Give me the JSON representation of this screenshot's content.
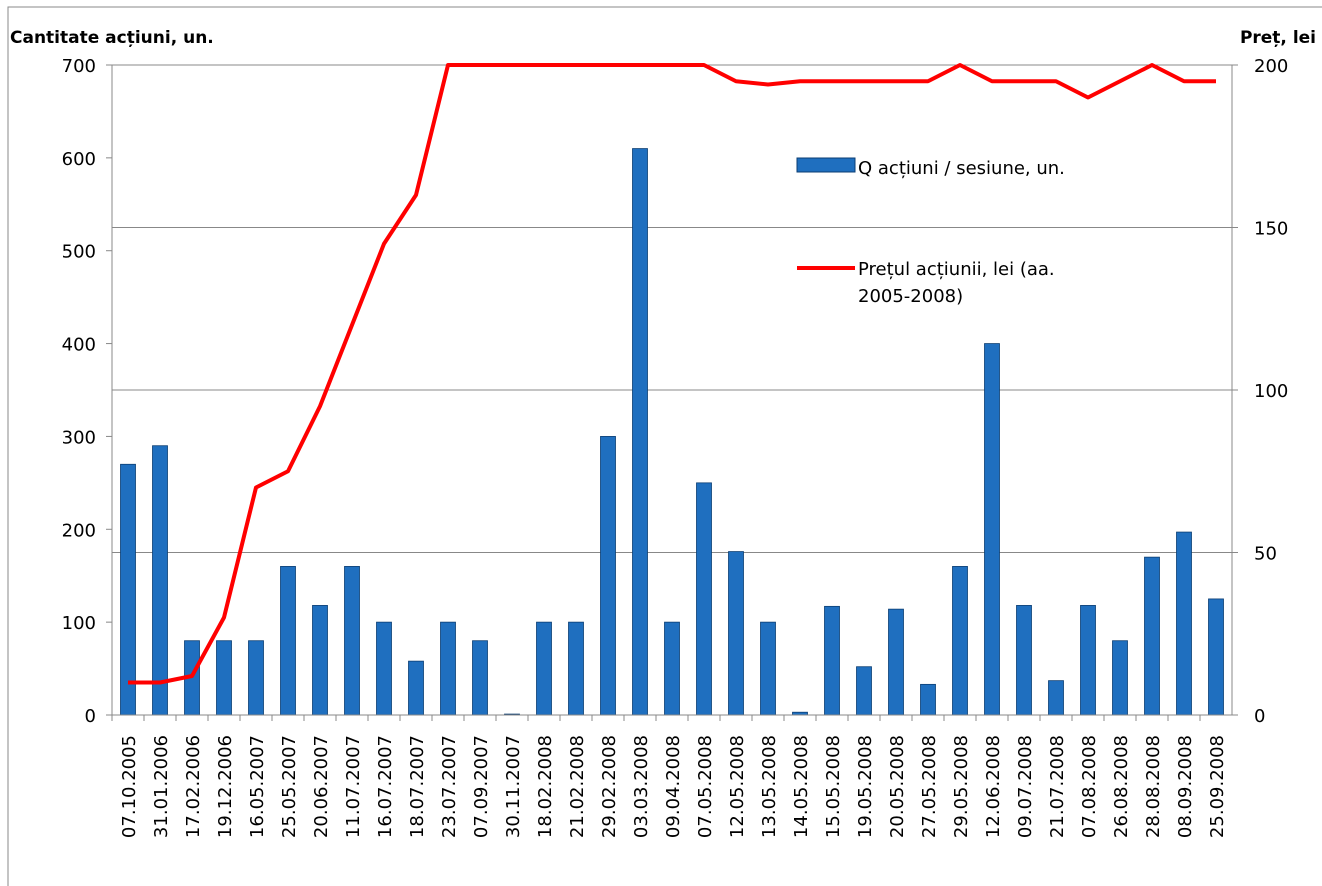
{
  "chart_data": {
    "type": "bar_line",
    "ylabel": "Cantitate acțiuni, un.",
    "y2label": "Preț, lei",
    "categories": [
      "07.10.2005",
      "31.01.2006",
      "17.02.2006",
      "19.12.2006",
      "16.05.2007",
      "25.05.2007",
      "20.06.2007",
      "11.07.2007",
      "16.07.2007",
      "18.07.2007",
      "23.07.2007",
      "07.09.2007",
      "30.11.2007",
      "18.02.2008",
      "21.02.2008",
      "29.02.2008",
      "03.03.2008",
      "09.04.2008",
      "07.05.2008",
      "12.05.2008",
      "13.05.2008",
      "14.05.2008",
      "15.05.2008",
      "19.05.2008",
      "20.05.2008",
      "27.05.2008",
      "29.05.2008",
      "12.06.2008",
      "09.07.2008",
      "21.07.2008",
      "07.08.2008",
      "26.08.2008",
      "28.08.2008",
      "08.09.2008",
      "25.09.2008"
    ],
    "series": [
      {
        "name": "Q acțiuni / sesiune, un.",
        "type": "bar",
        "axis": "y",
        "color": "#1f6fbf",
        "values": [
          270,
          290,
          80,
          80,
          80,
          160,
          118,
          160,
          100,
          58,
          100,
          80,
          1,
          100,
          100,
          300,
          610,
          100,
          250,
          176,
          100,
          3,
          117,
          52,
          114,
          33,
          160,
          400,
          118,
          37,
          118,
          80,
          170,
          197,
          125
        ]
      },
      {
        "name": "Prețul acțiunii, lei (aa. 2005-2008)",
        "type": "line",
        "axis": "y2",
        "color": "#ff0000",
        "values": [
          10,
          10,
          12,
          30,
          70,
          75,
          95,
          120,
          145,
          160,
          200,
          200,
          200,
          200,
          200,
          200,
          200,
          200,
          200,
          195,
          194,
          195,
          195,
          195,
          195,
          195,
          200,
          195,
          195,
          195,
          190,
          195,
          200,
          195,
          195
        ]
      }
    ],
    "ylim": [
      0,
      700
    ],
    "yticks": [
      0,
      100,
      200,
      300,
      400,
      500,
      600,
      700
    ],
    "y2lim": [
      0,
      200
    ],
    "y2ticks": [
      0,
      50,
      100,
      150,
      200
    ],
    "grid": "y2"
  }
}
